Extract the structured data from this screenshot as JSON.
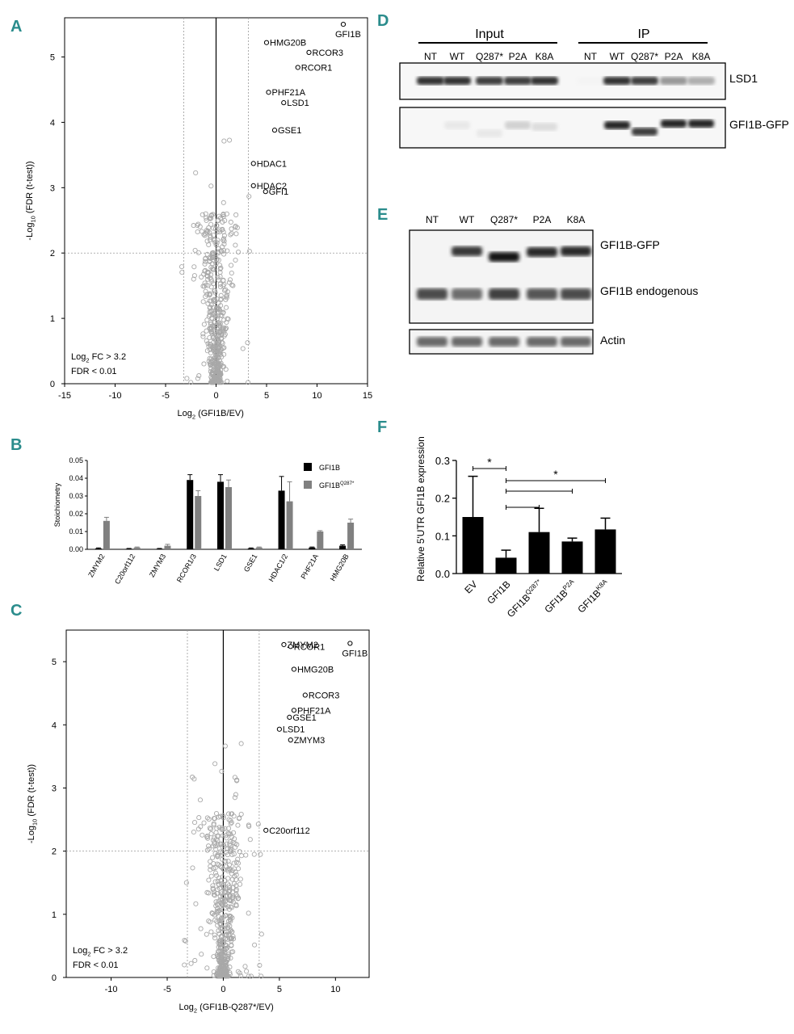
{
  "panel_labels": {
    "a": "A",
    "b": "B",
    "c": "C",
    "d": "D",
    "e": "E",
    "f": "F"
  },
  "chart_data": [
    {
      "id": "A",
      "type": "scatter",
      "title": "",
      "xlabel": "Log2 (GFI1B/EV)",
      "xlabel_main": "Log",
      "xlabel_sub": "2",
      "xlabel_rest": " (GFI1B/EV)",
      "ylabel_main": "-Log",
      "ylabel_sub": "10",
      "ylabel_rest": " (FDR (t-test))",
      "xlim": [
        -15,
        15
      ],
      "ylim": [
        0,
        5.6
      ],
      "xticks": [
        "-15",
        "-10",
        "-5",
        "0",
        "5",
        "10",
        "15"
      ],
      "xtick_values": [
        -15,
        -10,
        -5,
        0,
        5,
        10,
        15
      ],
      "yticks": [
        "0",
        "1",
        "2",
        "3",
        "4",
        "5"
      ],
      "ytick_values": [
        0,
        1,
        2,
        3,
        4,
        5
      ],
      "vlines": [
        -3.2,
        3.2
      ],
      "hline": 2,
      "legend_line1_main": "Log",
      "legend_line1_sub": "2",
      "legend_line1_rest": " FC > 3.2",
      "legend_line2": "FDR < 0.01",
      "labeled_points": [
        {
          "name": "GFI1B",
          "x": 12.6,
          "y": 5.5
        },
        {
          "name": "HMG20B",
          "x": 5.0,
          "y": 5.22
        },
        {
          "name": "RCOR3",
          "x": 9.2,
          "y": 5.07
        },
        {
          "name": "RCOR1",
          "x": 8.1,
          "y": 4.84
        },
        {
          "name": "PHF21A",
          "x": 5.2,
          "y": 4.46
        },
        {
          "name": "LSD1",
          "x": 6.7,
          "y": 4.3
        },
        {
          "name": "GSE1",
          "x": 5.8,
          "y": 3.88
        },
        {
          "name": "HDAC1",
          "x": 3.7,
          "y": 3.37
        },
        {
          "name": "HDAC2",
          "x": 3.7,
          "y": 3.03
        },
        {
          "name": "GFI1",
          "x": 4.9,
          "y": 2.94
        }
      ]
    },
    {
      "id": "B",
      "type": "bar",
      "ylabel": "Stoichiometry",
      "ylim": [
        0,
        0.05
      ],
      "yticks": [
        "0.00",
        "0.01",
        "0.02",
        "0.03",
        "0.04",
        "0.05"
      ],
      "ytick_values": [
        0,
        0.01,
        0.02,
        0.03,
        0.04,
        0.05
      ],
      "categories": [
        "ZMYM2",
        "C20orf112",
        "ZMYM3",
        "RCOR1/3",
        "LSD1",
        "GSE1",
        "HDAC1/2",
        "PHF21A",
        "HMG20B"
      ],
      "series": [
        {
          "name": "GFI1B",
          "sup": "",
          "color": "#000000",
          "values": [
            0.0005,
            0.0003,
            0.0003,
            0.039,
            0.038,
            0.0005,
            0.033,
            0.001,
            0.002
          ],
          "errors": [
            0.0003,
            0.0002,
            0.0002,
            0.003,
            0.004,
            0.0003,
            0.008,
            0.0003,
            0.0005
          ]
        },
        {
          "name": "GFI1B",
          "sup": "Q287*",
          "color": "#808080",
          "values": [
            0.016,
            0.001,
            0.002,
            0.03,
            0.035,
            0.001,
            0.027,
            0.01,
            0.015
          ],
          "errors": [
            0.002,
            0.0003,
            0.0008,
            0.003,
            0.004,
            0.0003,
            0.011,
            0.0005,
            0.002
          ]
        }
      ]
    },
    {
      "id": "C",
      "type": "scatter",
      "xlabel": "Log2 (GFI1B-Q287*/EV)",
      "xlabel_main": "Log",
      "xlabel_sub": "2",
      "xlabel_rest": " (GFI1B-Q287*/EV)",
      "ylabel_main": "-Log",
      "ylabel_sub": "10",
      "ylabel_rest": " (FDR (t-test))",
      "xlim": [
        -14,
        13
      ],
      "ylim": [
        0,
        5.5
      ],
      "xticks": [
        "-10",
        "-5",
        "0",
        "5",
        "10"
      ],
      "xtick_values": [
        -10,
        -5,
        0,
        5,
        10
      ],
      "yticks": [
        "0",
        "1",
        "2",
        "3",
        "4",
        "5"
      ],
      "ytick_values": [
        0,
        1,
        2,
        3,
        4,
        5
      ],
      "vlines": [
        -3.2,
        3.2
      ],
      "hline": 2,
      "legend_line1_main": "Log",
      "legend_line1_sub": "2",
      "legend_line1_rest": " FC > 3.2",
      "legend_line2": "FDR < 0.01",
      "labeled_points": [
        {
          "name": "ZMYM2",
          "x": 5.4,
          "y": 5.27
        },
        {
          "name": "RCOR1",
          "x": 6.0,
          "y": 5.24
        },
        {
          "name": "GFI1B",
          "x": 11.3,
          "y": 5.29
        },
        {
          "name": "HMG20B",
          "x": 6.3,
          "y": 4.88
        },
        {
          "name": "RCOR3",
          "x": 7.3,
          "y": 4.47
        },
        {
          "name": "PHF21A",
          "x": 6.3,
          "y": 4.23
        },
        {
          "name": "GSE1",
          "x": 5.9,
          "y": 4.12
        },
        {
          "name": "LSD1",
          "x": 5.0,
          "y": 3.93
        },
        {
          "name": "ZMYM3",
          "x": 6.0,
          "y": 3.76
        },
        {
          "name": "C20orf112",
          "x": 3.8,
          "y": 2.33
        }
      ]
    },
    {
      "id": "F",
      "type": "bar",
      "ylabel": "Relative 5'UTR GFI1B expression",
      "ylim": [
        0,
        0.3
      ],
      "yticks": [
        "0.0",
        "0.1",
        "0.2",
        "0.3"
      ],
      "ytick_values": [
        0,
        0.1,
        0.2,
        0.3
      ],
      "categories": [
        {
          "main": "EV",
          "sup": ""
        },
        {
          "main": "GFI1B",
          "sup": ""
        },
        {
          "main": "GFI1B",
          "sup": "Q287*"
        },
        {
          "main": "GFI1B",
          "sup": "P2A"
        },
        {
          "main": "GFI1B",
          "sup": "K8A"
        }
      ],
      "values": [
        0.15,
        0.042,
        0.11,
        0.085,
        0.117
      ],
      "errors": [
        0.108,
        0.02,
        0.063,
        0.009,
        0.03
      ],
      "significance": [
        {
          "from": 0,
          "to": 1,
          "label": "*"
        },
        {
          "from": 1,
          "to": 2,
          "label": ""
        },
        {
          "from": 1,
          "to": 3,
          "label": ""
        },
        {
          "from": 1,
          "to": 4,
          "label": "*"
        }
      ]
    }
  ],
  "blot_d": {
    "group_input": "Input",
    "group_ip": "IP",
    "lanes": [
      "NT",
      "WT",
      "Q287*",
      "P2A",
      "K8A",
      "NT",
      "WT",
      "Q287*",
      "P2A",
      "K8A"
    ],
    "band_labels": [
      "LSD1",
      "GFI1B-GFP"
    ]
  },
  "blot_e": {
    "lanes": [
      "NT",
      "WT",
      "Q287*",
      "P2A",
      "K8A"
    ],
    "band_labels": [
      "GFI1B-GFP",
      "GFI1B endogenous",
      "Actin"
    ]
  }
}
